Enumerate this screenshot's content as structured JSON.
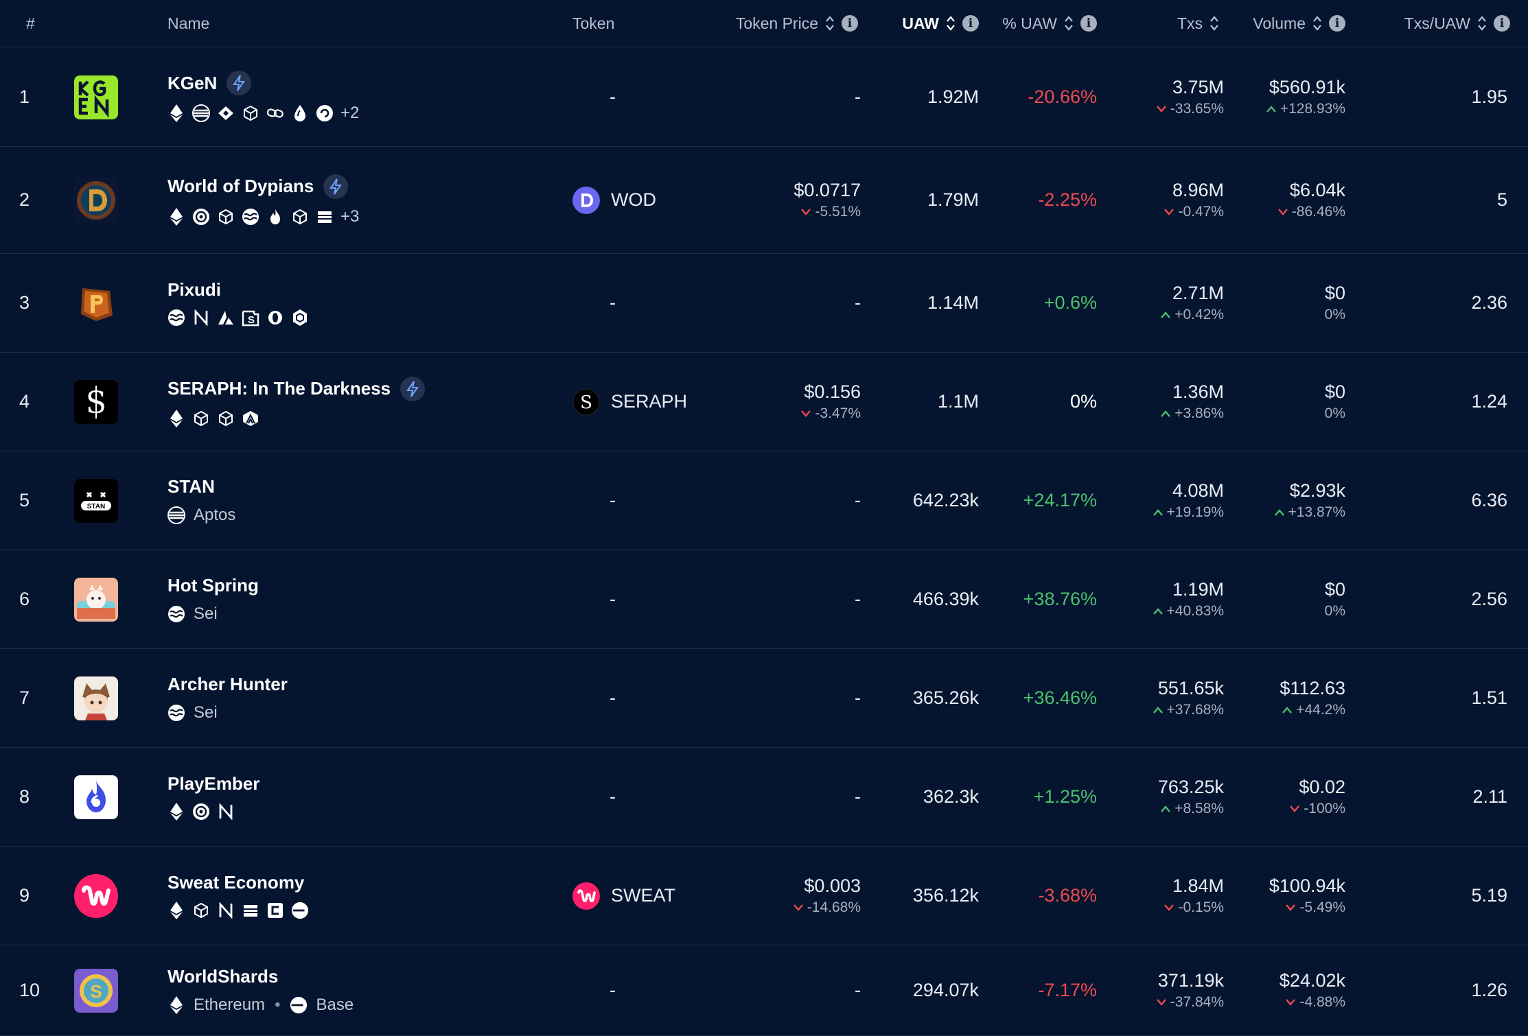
{
  "colors": {
    "bg": "#06152f",
    "positive": "#4cc16f",
    "negative": "#ee4a4f",
    "divider": "#1f2d47"
  },
  "header": {
    "rank": "#",
    "name": "Name",
    "token": "Token",
    "token_price": "Token Price",
    "uaw": "UAW",
    "pct_uaw": "% UAW",
    "txs": "Txs",
    "volume": "Volume",
    "txs_per_uaw": "Txs/UAW"
  },
  "rows": [
    {
      "rank": "1",
      "name": "KGeN",
      "boosted": true,
      "logo_icon": "kgen-logo",
      "chains": [
        "ethereum-icon",
        "aptos-icon",
        "binance-icon",
        "bnb-cube-icon",
        "chain-link-icon",
        "sui-icon",
        "swirl-icon"
      ],
      "chains_more": "+2",
      "token": "-",
      "token_icon": "",
      "price": "-",
      "price_change": "",
      "price_dir": "",
      "uaw": "1.92M",
      "pct_uaw": "-20.66%",
      "pct_dir": "neg",
      "txs": "3.75M",
      "txs_change": "-33.65%",
      "txs_dir": "down",
      "volume": "$560.91k",
      "volume_change": "+128.93%",
      "volume_dir": "up",
      "txs_uaw": "1.95"
    },
    {
      "rank": "2",
      "name": "World of Dypians",
      "boosted": true,
      "logo_icon": "dypians-logo",
      "chains": [
        "ethereum-icon",
        "circle-token-icon",
        "bnb-cube-icon",
        "sei-icon",
        "flame-icon",
        "bnb-cube-icon",
        "stack-icon"
      ],
      "chains_more": "+3",
      "token": "WOD",
      "token_icon": "wod-token-icon",
      "price": "$0.0717",
      "price_change": "-5.51%",
      "price_dir": "down",
      "uaw": "1.79M",
      "pct_uaw": "-2.25%",
      "pct_dir": "neg",
      "txs": "8.96M",
      "txs_change": "-0.47%",
      "txs_dir": "down",
      "volume": "$6.04k",
      "volume_change": "-86.46%",
      "volume_dir": "down",
      "txs_uaw": "5"
    },
    {
      "rank": "3",
      "name": "Pixudi",
      "boosted": false,
      "logo_icon": "pixudi-logo",
      "chains": [
        "sei-icon",
        "near-icon",
        "avalanche-icon",
        "s-square-icon",
        "ring-icon",
        "hexagon-icon"
      ],
      "chains_more": "",
      "token": "-",
      "token_icon": "",
      "price": "-",
      "price_change": "",
      "price_dir": "",
      "uaw": "1.14M",
      "pct_uaw": "+0.6%",
      "pct_dir": "pos",
      "txs": "2.71M",
      "txs_change": "+0.42%",
      "txs_dir": "up",
      "volume": "$0",
      "volume_change": "0%",
      "volume_dir": "",
      "txs_uaw": "2.36"
    },
    {
      "rank": "4",
      "name": "SERAPH: In The Darkness",
      "boosted": true,
      "logo_icon": "seraph-logo",
      "chains": [
        "ethereum-icon",
        "bnb-cube-icon",
        "bnb-cube-icon",
        "arbitrum-icon"
      ],
      "chains_more": "",
      "token": "SERAPH",
      "token_icon": "seraph-token-icon",
      "price": "$0.156",
      "price_change": "-3.47%",
      "price_dir": "down",
      "uaw": "1.1M",
      "pct_uaw": "0%",
      "pct_dir": "neutral",
      "txs": "1.36M",
      "txs_change": "+3.86%",
      "txs_dir": "up",
      "volume": "$0",
      "volume_change": "0%",
      "volume_dir": "",
      "txs_uaw": "1.24"
    },
    {
      "rank": "5",
      "name": "STAN",
      "boosted": false,
      "logo_icon": "stan-logo",
      "chains": [
        "aptos-icon"
      ],
      "chain_labels": [
        "Aptos"
      ],
      "chains_more": "",
      "token": "-",
      "token_icon": "",
      "price": "-",
      "price_change": "",
      "price_dir": "",
      "uaw": "642.23k",
      "pct_uaw": "+24.17%",
      "pct_dir": "pos",
      "txs": "4.08M",
      "txs_change": "+19.19%",
      "txs_dir": "up",
      "volume": "$2.93k",
      "volume_change": "+13.87%",
      "volume_dir": "up",
      "txs_uaw": "6.36"
    },
    {
      "rank": "6",
      "name": "Hot Spring",
      "boosted": false,
      "logo_icon": "hot-spring-logo",
      "chains": [
        "sei-icon"
      ],
      "chain_labels": [
        "Sei"
      ],
      "chains_more": "",
      "token": "-",
      "token_icon": "",
      "price": "-",
      "price_change": "",
      "price_dir": "",
      "uaw": "466.39k",
      "pct_uaw": "+38.76%",
      "pct_dir": "pos",
      "txs": "1.19M",
      "txs_change": "+40.83%",
      "txs_dir": "up",
      "volume": "$0",
      "volume_change": "0%",
      "volume_dir": "",
      "txs_uaw": "2.56"
    },
    {
      "rank": "7",
      "name": "Archer Hunter",
      "boosted": false,
      "logo_icon": "archer-hunter-logo",
      "chains": [
        "sei-icon"
      ],
      "chain_labels": [
        "Sei"
      ],
      "chains_more": "",
      "token": "-",
      "token_icon": "",
      "price": "-",
      "price_change": "",
      "price_dir": "",
      "uaw": "365.26k",
      "pct_uaw": "+36.46%",
      "pct_dir": "pos",
      "txs": "551.65k",
      "txs_change": "+37.68%",
      "txs_dir": "up",
      "volume": "$112.63",
      "volume_change": "+44.2%",
      "volume_dir": "up",
      "txs_uaw": "1.51"
    },
    {
      "rank": "8",
      "name": "PlayEmber",
      "boosted": false,
      "logo_icon": "playember-logo",
      "chains": [
        "ethereum-icon",
        "circle-token-icon",
        "near-icon"
      ],
      "chains_more": "",
      "token": "-",
      "token_icon": "",
      "price": "-",
      "price_change": "",
      "price_dir": "",
      "uaw": "362.3k",
      "pct_uaw": "+1.25%",
      "pct_dir": "pos",
      "txs": "763.25k",
      "txs_change": "+8.58%",
      "txs_dir": "up",
      "volume": "$0.02",
      "volume_change": "-100%",
      "volume_dir": "down",
      "txs_uaw": "2.11"
    },
    {
      "rank": "9",
      "name": "Sweat Economy",
      "boosted": false,
      "logo_icon": "sweat-logo",
      "chains": [
        "ethereum-icon",
        "bnb-cube-icon",
        "near-icon",
        "stack-icon",
        "c-square-icon",
        "base-icon"
      ],
      "chains_more": "",
      "token": "SWEAT",
      "token_icon": "sweat-token-icon",
      "price": "$0.003",
      "price_change": "-14.68%",
      "price_dir": "down",
      "uaw": "356.12k",
      "pct_uaw": "-3.68%",
      "pct_dir": "neg",
      "txs": "1.84M",
      "txs_change": "-0.15%",
      "txs_dir": "down",
      "volume": "$100.94k",
      "volume_change": "-5.49%",
      "volume_dir": "down",
      "txs_uaw": "5.19"
    },
    {
      "rank": "10",
      "name": "WorldShards",
      "boosted": false,
      "logo_icon": "worldshards-logo",
      "chains": [
        "ethereum-icon",
        "base-icon"
      ],
      "chain_labels": [
        "Ethereum",
        "Base"
      ],
      "chains_more": "",
      "token": "-",
      "token_icon": "",
      "price": "-",
      "price_change": "",
      "price_dir": "",
      "uaw": "294.07k",
      "pct_uaw": "-7.17%",
      "pct_dir": "neg",
      "txs": "371.19k",
      "txs_change": "-37.84%",
      "txs_dir": "down",
      "volume": "$24.02k",
      "volume_change": "-4.88%",
      "volume_dir": "down",
      "txs_uaw": "1.26"
    }
  ]
}
